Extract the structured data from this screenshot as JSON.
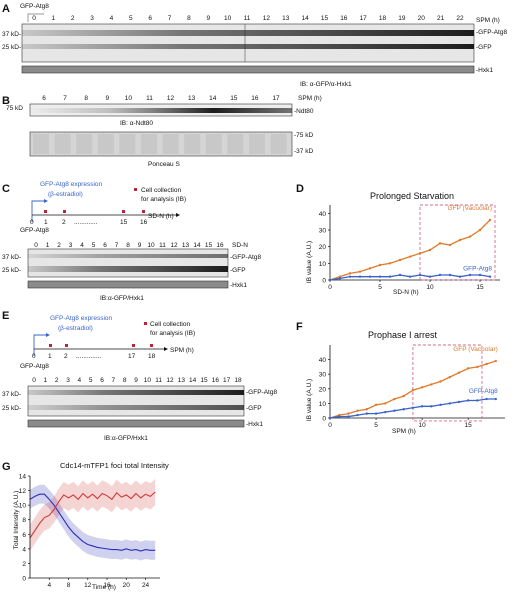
{
  "panels": {
    "A": {
      "letter": "A",
      "construct": "GFP-Atg8",
      "lanes": [
        "0",
        "1",
        "2",
        "3",
        "4",
        "5",
        "6",
        "7",
        "8",
        "9",
        "10",
        "11",
        "12",
        "13",
        "14",
        "15",
        "16",
        "17",
        "18",
        "19",
        "20",
        "21",
        "22"
      ],
      "unit": "SPM (h)",
      "mw_markers": [
        "37 kD-",
        "25 kD-"
      ],
      "band_labels": [
        "-GFP-Atg8",
        "-GFP",
        "-Hxk1"
      ],
      "antibody": "IB: α-GFP/α-Hxk1"
    },
    "B": {
      "letter": "B",
      "lanes": [
        "6",
        "7",
        "8",
        "9",
        "10",
        "11",
        "12",
        "13",
        "14",
        "15",
        "16",
        "17"
      ],
      "unit": "SPM (h)",
      "mw_marker_top": "75 kD",
      "band_label": "-Ndt80",
      "antibody": "IB:  α-Ndt80",
      "stain": "Ponceau S",
      "stain_markers": [
        "-75 kD",
        "-37 kD"
      ]
    },
    "C": {
      "letter": "C",
      "scheme_title_line1": "GFP-Atg8 expression",
      "scheme_title_line2": "(β-estradiol)",
      "legend_line1": "Cell collection",
      "legend_line2": "for analysis (IB)",
      "ticks": [
        "0",
        "1",
        "2",
        "15",
        "16"
      ],
      "dots": ".............",
      "axis_unit": "SD-N (h)",
      "construct": "GFP-Atg8",
      "lanes": [
        "0",
        "1",
        "2",
        "3",
        "4",
        "5",
        "6",
        "7",
        "8",
        "9",
        "10",
        "11",
        "12",
        "13",
        "14",
        "15",
        "16"
      ],
      "unit": "SD-N",
      "mw_markers": [
        "37 kD-",
        "25 kD-"
      ],
      "band_labels": [
        "-GFP-Atg8",
        "-GFP",
        "-Hxk1"
      ],
      "antibody": "IB:α-GFP/Hxk1"
    },
    "D": {
      "letter": "D",
      "chart_title": "Prolonged Starvation",
      "ylabel": "IB value (A.U.)",
      "xlabel": "SD-N (h)",
      "xticks": [
        "0",
        "5",
        "10",
        "15"
      ],
      "yticks": [
        "0",
        "10",
        "20",
        "30",
        "40"
      ],
      "label_vac": "GFP (Vacuolar)",
      "label_atg8": "GFP-Atg8"
    },
    "E": {
      "letter": "E",
      "scheme_title_line1": "GFP-Atg8 expression",
      "scheme_title_line2": "(β-estradiol)",
      "legend_line1": "Cell collection",
      "legend_line2": "for analysis (IB)",
      "ticks": [
        "0",
        "1",
        "2",
        "17",
        "18"
      ],
      "dots": "..............",
      "axis_unit": "SPM (h)",
      "construct": "GFP-Atg8",
      "lanes": [
        "0",
        "1",
        "2",
        "3",
        "4",
        "5",
        "6",
        "7",
        "8",
        "9",
        "10",
        "11",
        "12",
        "13",
        "14",
        "15",
        "16",
        "17",
        "18"
      ],
      "mw_markers": [
        "37 kD-",
        "25 kD-"
      ],
      "band_labels": [
        "-GFP-Atg8",
        "-GFP",
        "-Hxk1"
      ],
      "antibody": "IB:α-GFP/Hxk1"
    },
    "F": {
      "letter": "F",
      "chart_title": "Prophase I arrest",
      "ylabel": "IB value (A.U.)",
      "xlabel": "SPM (h)",
      "xticks": [
        "0",
        "5",
        "10",
        "15"
      ],
      "yticks": [
        "0",
        "10",
        "20",
        "30",
        "40"
      ],
      "label_vac": "GFP (Vacuolar)",
      "label_atg8": "GFP-Atg8"
    },
    "G": {
      "letter": "G",
      "chart_title": "Cdc14-mTFP1 foci total Intensity",
      "ylabel": "Total Intensity (A.U.)",
      "xlabel": "Time (h)",
      "xticks": [
        "4",
        "8",
        "12",
        "16",
        "20",
        "24"
      ],
      "yticks": [
        "0",
        "2",
        "4",
        "6",
        "8",
        "10",
        "12",
        "14"
      ]
    }
  },
  "colors": {
    "orange": "#e07a2b",
    "blue": "#3a63c9",
    "red": "#d03a3a",
    "navy": "#2a2fb8",
    "box": "#d36b8e"
  },
  "chart_data": [
    {
      "type": "line",
      "panel": "D",
      "title": "Prolonged Starvation",
      "xlabel": "SD-N (h)",
      "ylabel": "IB value (A.U.)",
      "xlim": [
        0,
        17
      ],
      "ylim": [
        0,
        45
      ],
      "x": [
        0,
        1,
        2,
        3,
        4,
        5,
        6,
        7,
        8,
        9,
        10,
        11,
        12,
        13,
        14,
        15,
        16
      ],
      "series": [
        {
          "name": "GFP (Vacuolar)",
          "color": "#e07a2b",
          "values": [
            0,
            2,
            4,
            5,
            7,
            9,
            10,
            12,
            14,
            16,
            18,
            22,
            21,
            24,
            26,
            30,
            36
          ]
        },
        {
          "name": "GFP-Atg8",
          "color": "#3a63c9",
          "values": [
            0,
            1,
            2,
            2,
            2,
            2,
            2,
            3,
            2,
            3,
            2,
            3,
            3,
            2,
            3,
            3,
            2
          ]
        }
      ],
      "highlight_box": {
        "x": [
          9,
          16.5
        ],
        "y": [
          0,
          45
        ]
      },
      "grid": false
    },
    {
      "type": "line",
      "panel": "F",
      "title": "Prophase I arrest",
      "xlabel": "SPM (h)",
      "ylabel": "IB value (A.U.)",
      "xlim": [
        0,
        19
      ],
      "ylim": [
        0,
        50
      ],
      "x": [
        0,
        1,
        2,
        3,
        4,
        5,
        6,
        7,
        8,
        9,
        10,
        11,
        12,
        13,
        14,
        15,
        16,
        17,
        18
      ],
      "series": [
        {
          "name": "GFP (Vacuolar)",
          "color": "#e07a2b",
          "values": [
            0,
            2,
            3,
            5,
            6,
            9,
            10,
            13,
            15,
            19,
            21,
            23,
            25,
            28,
            31,
            34,
            35,
            37,
            39
          ]
        },
        {
          "name": "GFP-Atg8",
          "color": "#3a63c9",
          "values": [
            0,
            1,
            1,
            2,
            3,
            3,
            4,
            5,
            6,
            7,
            8,
            8,
            9,
            10,
            11,
            12,
            12,
            13,
            13
          ]
        }
      ],
      "highlight_box": {
        "x": [
          9,
          16.5
        ],
        "y": [
          -2,
          50
        ]
      },
      "grid": false
    },
    {
      "type": "line",
      "panel": "G",
      "title": "Cdc14-mTFP1 foci total Intensity",
      "xlabel": "Time (h)",
      "ylabel": "Total Intensity (A.U.)",
      "xlim": [
        0,
        27
      ],
      "ylim": [
        0,
        14
      ],
      "x": [
        0,
        1,
        2,
        3,
        4,
        5,
        6,
        7,
        8,
        9,
        10,
        11,
        12,
        13,
        14,
        15,
        16,
        17,
        18,
        19,
        20,
        21,
        22,
        23,
        24,
        25,
        26
      ],
      "series": [
        {
          "color": "#2a2fb8",
          "values": [
            10.8,
            11.2,
            11.5,
            11.5,
            10.8,
            10.0,
            9.0,
            8.0,
            7.0,
            6.2,
            5.6,
            5.0,
            4.6,
            4.4,
            4.2,
            4.1,
            4.0,
            3.9,
            3.9,
            3.8,
            4.0,
            3.8,
            3.9,
            3.7,
            3.9,
            3.8,
            3.8
          ],
          "band": 1.3
        },
        {
          "color": "#d03a3a",
          "values": [
            5.5,
            6.5,
            7.5,
            8.3,
            8.6,
            9.4,
            10.5,
            11.4,
            11.0,
            11.4,
            10.8,
            11.6,
            11.0,
            11.5,
            10.9,
            11.6,
            11.3,
            10.8,
            11.7,
            11.1,
            11.4,
            10.9,
            11.6,
            11.0,
            11.5,
            11.2,
            11.8
          ],
          "band": 1.8
        }
      ],
      "grid": false
    }
  ]
}
